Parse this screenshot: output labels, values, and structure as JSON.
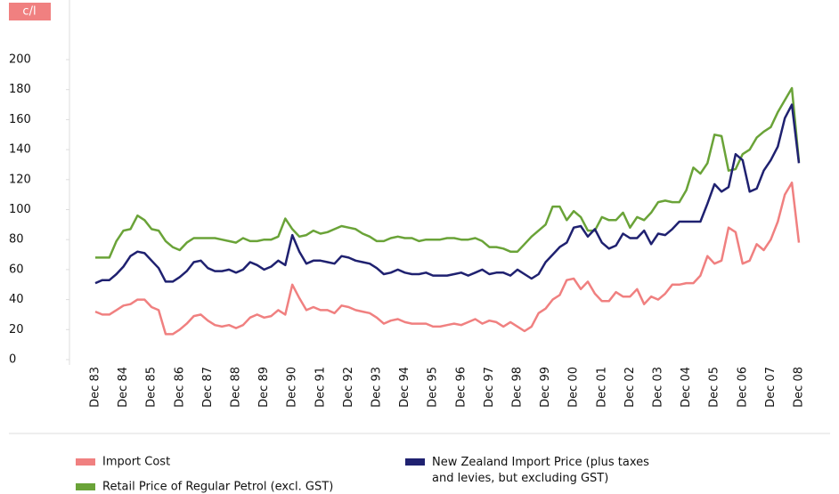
{
  "chart_data": {
    "type": "line",
    "y_unit_label": "c/l",
    "categories": [
      "Dec 83",
      null,
      null,
      null,
      "Dec 84",
      null,
      null,
      null,
      "Dec 85",
      null,
      null,
      null,
      "Dec 86",
      null,
      null,
      null,
      "Dec 87",
      null,
      null,
      null,
      "Dec 88",
      null,
      null,
      null,
      "Dec 89",
      null,
      null,
      null,
      "Dec 90",
      null,
      null,
      null,
      "Dec 91",
      null,
      null,
      null,
      "Dec 92",
      null,
      null,
      null,
      "Dec 93",
      null,
      null,
      null,
      "Dec 94",
      null,
      null,
      null,
      "Dec 95",
      null,
      null,
      null,
      "Dec 96",
      null,
      null,
      null,
      "Dec 97",
      null,
      null,
      null,
      "Dec 98",
      null,
      null,
      null,
      "Dec 99",
      null,
      null,
      null,
      "Dec 00",
      null,
      null,
      null,
      "Dec 01",
      null,
      null,
      null,
      "Dec 02",
      null,
      null,
      null,
      "Dec 03",
      null,
      null,
      null,
      "Dec 04",
      null,
      null,
      null,
      "Dec 05",
      null,
      null,
      null,
      "Dec 06",
      null,
      null,
      null,
      "Dec 07",
      null,
      null,
      null,
      "Dec 08"
    ],
    "series": [
      {
        "name": "Import Cost",
        "color": "#f08080",
        "values": [
          32,
          30,
          30,
          33,
          36,
          37,
          40,
          40,
          35,
          33,
          17,
          17,
          20,
          24,
          29,
          30,
          26,
          23,
          22,
          23,
          21,
          23,
          28,
          30,
          28,
          29,
          33,
          30,
          50,
          41,
          33,
          35,
          33,
          33,
          31,
          36,
          35,
          33,
          32,
          31,
          28,
          24,
          26,
          27,
          25,
          24,
          24,
          24,
          22,
          22,
          23,
          24,
          23,
          25,
          27,
          24,
          26,
          25,
          22,
          25,
          22,
          19,
          22,
          31,
          34,
          40,
          43,
          53,
          54,
          47,
          52,
          44,
          39,
          39,
          45,
          42,
          42,
          47,
          37,
          42,
          40,
          44,
          50,
          50,
          51,
          51,
          56,
          69,
          64,
          66,
          88,
          85,
          64,
          66,
          77,
          73,
          80,
          92,
          110,
          118,
          78
        ]
      },
      {
        "name": "New Zealand Import Price (plus taxes and levies, but excluding GST)",
        "color": "#1f2170",
        "values": [
          51,
          53,
          53,
          57,
          62,
          69,
          72,
          71,
          66,
          61,
          52,
          52,
          55,
          59,
          65,
          66,
          61,
          59,
          59,
          60,
          58,
          60,
          65,
          63,
          60,
          62,
          66,
          63,
          83,
          72,
          64,
          66,
          66,
          65,
          64,
          69,
          68,
          66,
          65,
          64,
          61,
          57,
          58,
          60,
          58,
          57,
          57,
          58,
          56,
          56,
          56,
          57,
          58,
          56,
          58,
          60,
          57,
          58,
          58,
          56,
          60,
          57,
          54,
          57,
          65,
          70,
          75,
          78,
          88,
          89,
          82,
          87,
          78,
          74,
          76,
          84,
          81,
          81,
          86,
          77,
          84,
          83,
          87,
          92,
          92,
          92,
          92,
          104,
          117,
          112,
          115,
          137,
          133,
          112,
          114,
          126,
          133,
          142,
          161,
          170,
          131
        ]
      },
      {
        "name": "Retail Price of Regular Petrol (excl. GST)",
        "color": "#6aa338",
        "values": [
          68,
          68,
          68,
          79,
          86,
          87,
          96,
          93,
          87,
          86,
          79,
          75,
          73,
          78,
          81,
          81,
          81,
          81,
          80,
          79,
          78,
          81,
          79,
          79,
          80,
          80,
          82,
          94,
          87,
          82,
          83,
          86,
          84,
          85,
          87,
          89,
          88,
          87,
          84,
          82,
          79,
          79,
          81,
          82,
          81,
          81,
          79,
          80,
          80,
          80,
          81,
          81,
          80,
          80,
          81,
          79,
          75,
          75,
          74,
          72,
          72,
          77,
          82,
          86,
          90,
          102,
          102,
          93,
          99,
          95,
          86,
          86,
          95,
          93,
          93,
          98,
          88,
          95,
          93,
          98,
          105,
          106,
          105,
          105,
          113,
          128,
          124,
          131,
          150,
          149,
          126,
          127,
          137,
          140,
          148,
          152,
          155,
          165,
          173,
          181,
          132
        ]
      }
    ],
    "ylim": [
      0,
      200
    ],
    "yticks": [
      0,
      20,
      40,
      60,
      80,
      100,
      120,
      140,
      160,
      180,
      200
    ]
  }
}
